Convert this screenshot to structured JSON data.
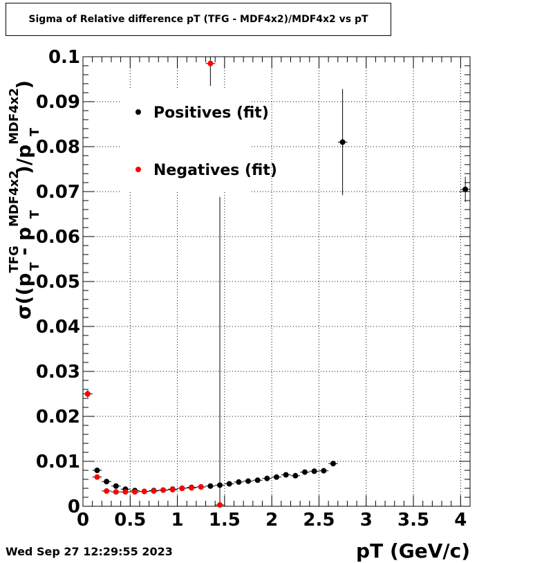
{
  "title": "Sigma of Relative difference pT (TFG - MDF4x2)/MDF4x2 vs pT",
  "datestamp": "Wed Sep 27 12:29:55 2023",
  "chart_data": {
    "type": "scatter",
    "xlabel": "pT (GeV/c)",
    "ylabel": {
      "prefix": "σ((p",
      "sub1": "T",
      "sup1": "TFG",
      "mid": " - p",
      "sub2": "T",
      "sup2": "MDF4x2",
      "mid2": ")/p",
      "sub3": "T",
      "sup3": "MDF4x2",
      "suffix": ")"
    },
    "xlim": [
      0,
      4.1
    ],
    "ylim": [
      0,
      0.1
    ],
    "xticks": [
      0,
      0.5,
      1,
      1.5,
      2,
      2.5,
      3,
      3.5,
      4
    ],
    "xtick_labels": [
      "0",
      "0.5",
      "1",
      "1.5",
      "2",
      "2.5",
      "3",
      "3.5",
      "4"
    ],
    "yticks": [
      0,
      0.01,
      0.02,
      0.03,
      0.04,
      0.05,
      0.06,
      0.07,
      0.08,
      0.09,
      0.1
    ],
    "ytick_labels": [
      "0",
      "0.01",
      "0.02",
      "0.03",
      "0.04",
      "0.05",
      "0.06",
      "0.07",
      "0.08",
      "0.09",
      "0.1"
    ],
    "grid": true,
    "legend_position": "top-left",
    "series": [
      {
        "name": "Positives (fit)",
        "color": "#000000",
        "points": [
          {
            "x": 0.05,
            "y": 0.025,
            "yerr": 0.0008
          },
          {
            "x": 0.15,
            "y": 0.008,
            "yerr": 0.0004
          },
          {
            "x": 0.25,
            "y": 0.0055,
            "yerr": 0.0003
          },
          {
            "x": 0.35,
            "y": 0.0045,
            "yerr": 0.0003
          },
          {
            "x": 0.45,
            "y": 0.0038,
            "yerr": 0.0003
          },
          {
            "x": 0.55,
            "y": 0.0035,
            "yerr": 0.0003
          },
          {
            "x": 0.65,
            "y": 0.0033,
            "yerr": 0.0003
          },
          {
            "x": 0.75,
            "y": 0.0035,
            "yerr": 0.0003
          },
          {
            "x": 0.85,
            "y": 0.0036,
            "yerr": 0.0003
          },
          {
            "x": 0.95,
            "y": 0.0038,
            "yerr": 0.0003
          },
          {
            "x": 1.05,
            "y": 0.004,
            "yerr": 0.0003
          },
          {
            "x": 1.15,
            "y": 0.0042,
            "yerr": 0.0003
          },
          {
            "x": 1.25,
            "y": 0.0043,
            "yerr": 0.0003
          },
          {
            "x": 1.35,
            "y": 0.0045,
            "yerr": 0.0003
          },
          {
            "x": 1.45,
            "y": 0.0047,
            "yerr": 0.0003
          },
          {
            "x": 1.55,
            "y": 0.005,
            "yerr": 0.0003
          },
          {
            "x": 1.65,
            "y": 0.0054,
            "yerr": 0.0003
          },
          {
            "x": 1.75,
            "y": 0.0056,
            "yerr": 0.0003
          },
          {
            "x": 1.85,
            "y": 0.0058,
            "yerr": 0.0003
          },
          {
            "x": 1.95,
            "y": 0.0062,
            "yerr": 0.0003
          },
          {
            "x": 2.05,
            "y": 0.0065,
            "yerr": 0.0003
          },
          {
            "x": 2.15,
            "y": 0.007,
            "yerr": 0.0004
          },
          {
            "x": 2.25,
            "y": 0.0068,
            "yerr": 0.0004
          },
          {
            "x": 2.35,
            "y": 0.0076,
            "yerr": 0.0004
          },
          {
            "x": 2.45,
            "y": 0.0078,
            "yerr": 0.0004
          },
          {
            "x": 2.55,
            "y": 0.0079,
            "yerr": 0.0004
          },
          {
            "x": 2.65,
            "y": 0.0095,
            "yerr": 0.0005
          },
          {
            "x": 2.75,
            "y": 0.081,
            "yerr": 0.0118
          },
          {
            "x": 4.05,
            "y": 0.0705,
            "yerr": 0.0028
          }
        ]
      },
      {
        "name": "Negatives (fit)",
        "color": "#ff0000",
        "points": [
          {
            "x": 0.05,
            "y": 0.025,
            "yerr": 0.0007
          },
          {
            "x": 0.15,
            "y": 0.0065,
            "yerr": 0.0003
          },
          {
            "x": 0.25,
            "y": 0.0034,
            "yerr": 0.0002
          },
          {
            "x": 0.35,
            "y": 0.0032,
            "yerr": 0.0002
          },
          {
            "x": 0.45,
            "y": 0.0032,
            "yerr": 0.0002
          },
          {
            "x": 0.55,
            "y": 0.0032,
            "yerr": 0.0002
          },
          {
            "x": 0.65,
            "y": 0.0033,
            "yerr": 0.0002
          },
          {
            "x": 0.75,
            "y": 0.0034,
            "yerr": 0.0002
          },
          {
            "x": 0.85,
            "y": 0.0036,
            "yerr": 0.0002
          },
          {
            "x": 0.95,
            "y": 0.0037,
            "yerr": 0.0002
          },
          {
            "x": 1.05,
            "y": 0.004,
            "yerr": 0.0002
          },
          {
            "x": 1.15,
            "y": 0.0041,
            "yerr": 0.0002
          },
          {
            "x": 1.25,
            "y": 0.0043,
            "yerr": 0.0002
          },
          {
            "x": 1.35,
            "y": 0.0985,
            "yerr": 0.005
          },
          {
            "x": 1.45,
            "y": 0.0003,
            "yerr": 0.0685
          }
        ]
      }
    ]
  }
}
